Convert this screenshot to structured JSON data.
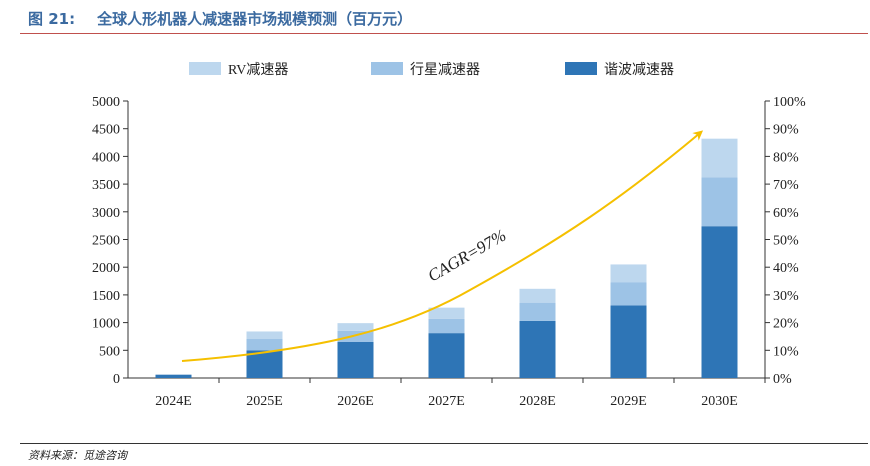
{
  "figure": {
    "label": "图 21:",
    "title": "全球人形机器人减速器市场规模预测（百万元）",
    "source": "资料来源：觅途咨询"
  },
  "colors": {
    "rv": "#bdd7ee",
    "planetary": "#9dc3e6",
    "harmonic": "#2e75b6",
    "cagr_line": "#f5c000",
    "title": "#3b6aa0",
    "title_rule": "#c0504d"
  },
  "chart_data": {
    "type": "bar",
    "stacked": true,
    "categories": [
      "2024E",
      "2025E",
      "2026E",
      "2027E",
      "2028E",
      "2029E",
      "2030E"
    ],
    "series": [
      {
        "name": "谐波减速器",
        "values": [
          60,
          500,
          650,
          810,
          1030,
          1310,
          2740
        ]
      },
      {
        "name": "行星减速器",
        "values": [
          0,
          210,
          200,
          260,
          330,
          420,
          880
        ]
      },
      {
        "name": "RV减速器",
        "values": [
          0,
          130,
          140,
          200,
          250,
          320,
          700
        ]
      }
    ],
    "legend_order": [
      "RV减速器",
      "行星减速器",
      "谐波减速器"
    ],
    "legend_position": "top",
    "ylim": [
      0,
      5000
    ],
    "yticks": [
      "0",
      "500",
      "1000",
      "1500",
      "2000",
      "2500",
      "3000",
      "3500",
      "4000",
      "4500",
      "5000"
    ],
    "y2lim": [
      0,
      100
    ],
    "y2ticks": [
      "0%",
      "10%",
      "20%",
      "30%",
      "40%",
      "50%",
      "60%",
      "70%",
      "80%",
      "90%",
      "100%"
    ],
    "grid": false,
    "annotation": "CAGR=97%"
  }
}
